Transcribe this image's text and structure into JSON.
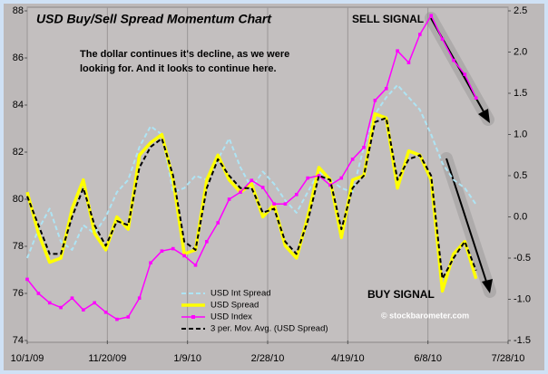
{
  "chart_data": {
    "type": "line",
    "title": "USD Buy/Sell Spread Momentum Chart",
    "annotations": [
      "The dollar continues it's decline, as we were looking for.  And it looks to continue here.",
      "SELL SIGNAL",
      "BUY SIGNAL",
      "© stockbarometer.com"
    ],
    "x": [
      "10/1/09",
      "10/8/09",
      "10/15/09",
      "10/22/09",
      "10/29/09",
      "11/5/09",
      "11/12/09",
      "11/19/09",
      "11/26/09",
      "12/3/09",
      "12/10/09",
      "12/17/09",
      "12/24/09",
      "12/31/09",
      "1/7/10",
      "1/14/10",
      "1/21/10",
      "1/28/10",
      "2/4/10",
      "2/11/10",
      "2/18/10",
      "2/25/10",
      "3/4/10",
      "3/11/10",
      "3/18/10",
      "3/25/10",
      "4/1/10",
      "4/8/10",
      "4/15/10",
      "4/22/10",
      "4/29/10",
      "5/6/10",
      "5/13/10",
      "5/20/10",
      "5/27/10",
      "6/3/10",
      "6/10/10",
      "6/17/10",
      "6/24/10",
      "7/1/10",
      "7/8/10"
    ],
    "xlim": [
      "10/1/09",
      "7/28/10"
    ],
    "xticks": [
      "10/1/09",
      "11/20/09",
      "1/9/10",
      "2/28/10",
      "4/19/10",
      "6/8/10",
      "7/28/10"
    ],
    "ylim": [
      74,
      88
    ],
    "yticks": [
      74,
      76,
      78,
      80,
      82,
      84,
      86,
      88
    ],
    "y2lim": [
      -1.5,
      2.5
    ],
    "y2ticks": [
      -1.5,
      {
        "value": -1.0,
        "label": "-1.0"
      },
      -0.5,
      {
        "value": 0.0,
        "label": "0.0"
      },
      0.5,
      {
        "value": 1.0,
        "label": "1.0"
      },
      1.5,
      {
        "value": 2.0,
        "label": "2.0"
      },
      2.5
    ],
    "grid": "x",
    "legend": "lower center",
    "series": [
      {
        "name": "USD Int Spread",
        "color": "#aee4f4",
        "axis": "y2",
        "dashed": true,
        "width": 2,
        "values": [
          -0.5,
          -0.15,
          0.1,
          -0.3,
          -0.4,
          -0.1,
          -0.2,
          0.0,
          0.3,
          0.45,
          0.85,
          1.1,
          1.0,
          0.3,
          0.35,
          0.5,
          0.45,
          0.7,
          0.95,
          0.6,
          0.35,
          0.55,
          0.4,
          0.2,
          0.05,
          0.3,
          0.55,
          0.45,
          0.35,
          0.3,
          0.85,
          1.25,
          1.45,
          1.6,
          1.45,
          1.3,
          1.0,
          0.65,
          0.45,
          0.35,
          0.15
        ]
      },
      {
        "name": "USD Spread",
        "color": "#ffff00",
        "axis": "y2",
        "width": 3.5,
        "values": [
          0.3,
          -0.2,
          -0.55,
          -0.5,
          0.1,
          0.45,
          -0.2,
          -0.4,
          0.0,
          -0.15,
          0.75,
          0.9,
          1.0,
          0.45,
          -0.45,
          -0.4,
          0.45,
          0.75,
          0.45,
          0.3,
          0.4,
          0.0,
          0.15,
          -0.35,
          -0.5,
          0.0,
          0.6,
          0.45,
          -0.25,
          0.45,
          0.5,
          1.25,
          1.2,
          0.35,
          0.8,
          0.75,
          0.45,
          -0.9,
          -0.45,
          -0.3,
          -0.75
        ]
      },
      {
        "name": "USD Index",
        "color": "#ff00ff",
        "axis": "y",
        "markers": true,
        "width": 1.5,
        "values": [
          76.6,
          76.0,
          75.6,
          75.4,
          75.8,
          75.3,
          75.6,
          75.2,
          74.9,
          75.0,
          75.8,
          77.3,
          77.8,
          77.9,
          77.6,
          77.2,
          78.2,
          79.0,
          80.0,
          80.3,
          80.8,
          80.5,
          79.8,
          79.8,
          80.2,
          80.9,
          81.0,
          80.6,
          80.9,
          81.7,
          82.2,
          84.2,
          84.7,
          86.3,
          85.8,
          87.0,
          87.8,
          86.8,
          85.9,
          85.3,
          84.3
        ]
      },
      {
        "name": "3 per. Mov. Avg. (USD Spread)",
        "color": "#000000",
        "axis": "y2",
        "dashed": true,
        "width": 2,
        "values": [
          0.25,
          -0.1,
          -0.45,
          -0.45,
          0.0,
          0.35,
          -0.1,
          -0.35,
          -0.05,
          -0.1,
          0.6,
          0.85,
          0.95,
          0.5,
          -0.3,
          -0.4,
          0.35,
          0.7,
          0.5,
          0.35,
          0.35,
          0.05,
          0.1,
          -0.3,
          -0.45,
          -0.05,
          0.5,
          0.45,
          -0.15,
          0.35,
          0.5,
          1.15,
          1.2,
          0.45,
          0.7,
          0.75,
          0.5,
          -0.75,
          -0.5,
          -0.3,
          -0.65
        ]
      }
    ]
  }
}
